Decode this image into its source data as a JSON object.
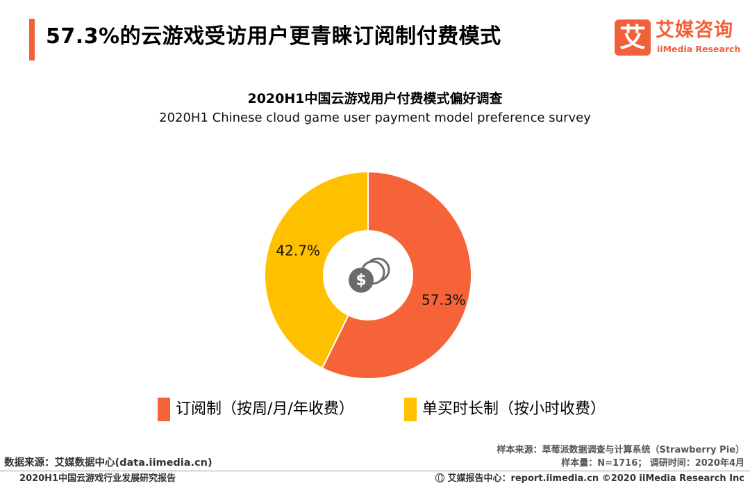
{
  "header": {
    "title": "57.3%的云游戏受访用户更青睐订阅制付费模式"
  },
  "logo": {
    "glyph": "艾",
    "name": "艾媒咨询",
    "sub": "iiMedia Research"
  },
  "colors": {
    "accent": "#f0603b",
    "subscription": "#f76338",
    "hourly": "#ffc000"
  },
  "center_icon": "coins-dollar-icon",
  "chart_data": {
    "type": "pie",
    "variant": "donut",
    "title": "2020H1中国云游戏用户付费模式偏好调查",
    "subtitle": "2020H1 Chinese cloud game user payment model preference survey",
    "categories": [
      "订阅制（按周/月/年收费）",
      "单买时长制（按小时收费）"
    ],
    "values": [
      57.3,
      42.7
    ],
    "labels": [
      "57.3%",
      "42.7%"
    ],
    "unit": "%",
    "legend": "bottom"
  },
  "source": {
    "data_source": "数据来源：艾媒数据中心(data.iimedia.cn)",
    "sample_source": "样本来源：草莓派数据调查与计算系统（Strawberry Pie）",
    "sample_info": "样本量：N=1716； 调研时间：2020年4月"
  },
  "footer": {
    "report": "2020H1中国云游戏行业发展研究报告",
    "right": "艾媒报告中心：report.iimedia.cn  ©2020  iiMedia Research  Inc"
  }
}
